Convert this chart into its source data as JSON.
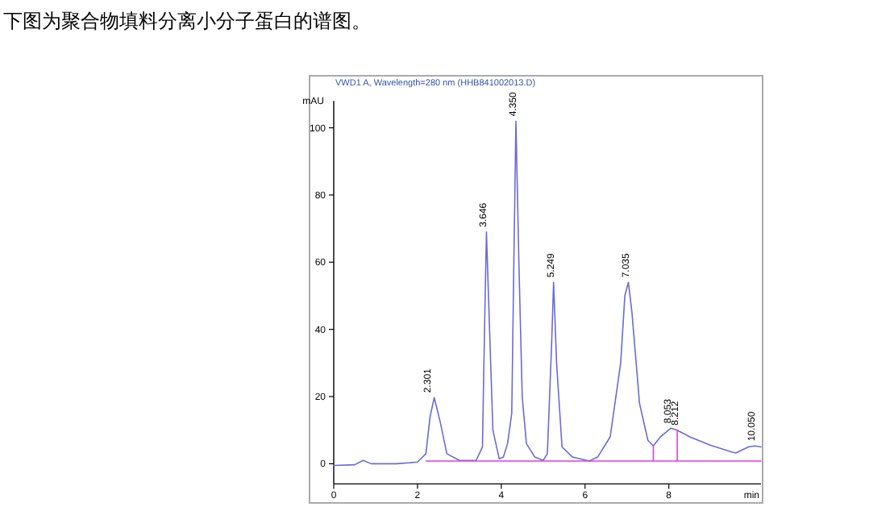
{
  "chart_data": {
    "type": "line",
    "title": "下图为聚合物填料分离小分子蛋白的谱图。",
    "subtitle": "VWD1 A, Wavelength=280 nm (HHB841002013.D)",
    "xlabel": "min",
    "ylabel": "mAU",
    "xlim": [
      0,
      10.2
    ],
    "ylim": [
      -6,
      108
    ],
    "xticks": [
      0,
      2,
      4,
      6,
      8
    ],
    "yticks": [
      0,
      20,
      40,
      60,
      80,
      100
    ],
    "grid": false,
    "marker": "none",
    "line_style": "solid",
    "series": [
      {
        "color": "#6a6ad8",
        "x": [
          0,
          0.5,
          0.7,
          0.9,
          1.5,
          2.0,
          2.2,
          2.3,
          2.4,
          2.55,
          2.7,
          3.0,
          3.4,
          3.55,
          3.6,
          3.646,
          3.72,
          3.8,
          3.95,
          4.05,
          4.15,
          4.25,
          4.3,
          4.35,
          4.42,
          4.5,
          4.6,
          4.8,
          5.0,
          5.1,
          5.2,
          5.249,
          5.32,
          5.45,
          5.7,
          6.1,
          6.3,
          6.6,
          6.85,
          6.95,
          7.035,
          7.12,
          7.3,
          7.5,
          7.63,
          7.8,
          8.05,
          8.2,
          8.5,
          9.0,
          9.5,
          9.6,
          9.9,
          10.05,
          10.2
        ],
        "values": [
          -0.5,
          -0.3,
          1.0,
          0,
          0,
          0.5,
          3,
          14,
          19.7,
          12,
          3,
          1,
          1,
          5,
          40,
          69,
          40,
          10,
          1.5,
          2,
          6,
          15,
          60,
          102,
          60,
          20,
          6,
          2,
          1,
          3,
          35,
          54,
          30,
          5,
          2,
          0.8,
          2,
          8,
          30,
          50,
          54,
          45,
          18,
          7,
          5.3,
          8,
          10.6,
          10,
          8,
          5.5,
          3.5,
          3.2,
          5,
          5.3,
          5
        ]
      },
      {
        "color": "#e040e0",
        "x": [
          2.2,
          7.63,
          7.63,
          7.63,
          8.2,
          8.2,
          8.2,
          10.2
        ],
        "values": [
          0.8,
          0.8,
          5.3,
          0.8,
          0.8,
          10,
          0.8,
          0.8
        ]
      }
    ],
    "annotations": [
      {
        "text": "2.301",
        "x": 2.301,
        "y": 19.7
      },
      {
        "text": "3.646",
        "x": 3.646,
        "y": 69
      },
      {
        "text": "4.350",
        "x": 4.35,
        "y": 102
      },
      {
        "text": "5.249",
        "x": 5.249,
        "y": 54
      },
      {
        "text": "7.035",
        "x": 7.035,
        "y": 54
      },
      {
        "text": "8.053",
        "x": 8.053,
        "y": 10.6
      },
      {
        "text": "8.212",
        "x": 8.212,
        "y": 10
      },
      {
        "text": "10.050",
        "x": 10.05,
        "y": 5.3
      }
    ]
  }
}
